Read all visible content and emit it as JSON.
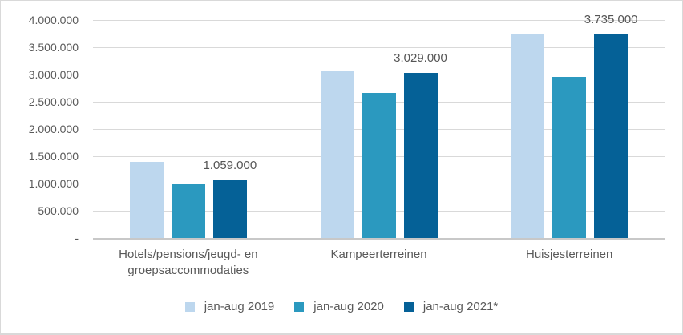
{
  "chart_data": {
    "type": "bar",
    "title": "",
    "categories": [
      "Hotels/pensions/jeugd- en groepsaccommodaties",
      "Kampeerterreinen",
      "Huisjesterreinen"
    ],
    "series": [
      {
        "name": "jan-aug 2019",
        "color": "#BDD7EE",
        "values": [
          1400000,
          3080000,
          3730000
        ]
      },
      {
        "name": "jan-aug 2020",
        "color": "#2B99BF",
        "values": [
          990000,
          2660000,
          2950000
        ]
      },
      {
        "name": "jan-aug 2021*",
        "color": "#056197",
        "values": [
          1059000,
          3029000,
          3735000
        ],
        "data_labels": [
          "1.059.000",
          "3.029.000",
          "3.735.000"
        ]
      }
    ],
    "y_axis": {
      "min": 0,
      "max": 4000000,
      "step": 500000,
      "tick_labels": [
        "-",
        "500.000",
        "1.000.000",
        "1.500.000",
        "2.000.000",
        "2.500.000",
        "3.000.000",
        "3.500.000",
        "4.000.000"
      ]
    },
    "legend_position": "bottom",
    "grid": true,
    "colors": {
      "text": "#595959",
      "gridline": "#D9D9D9",
      "axis_line": "#C8C8C8",
      "border": "#D9D9D9",
      "background": "#FFFFFF"
    }
  }
}
